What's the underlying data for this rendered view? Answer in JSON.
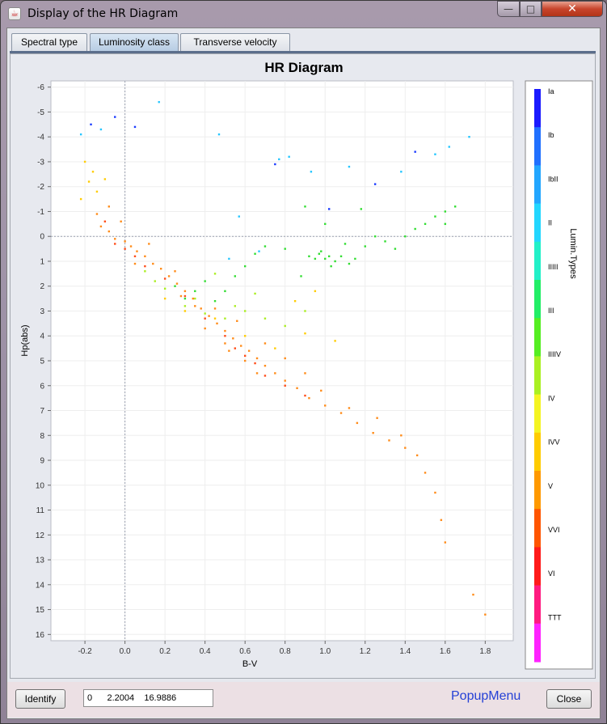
{
  "window": {
    "title": "Display of the HR Diagram",
    "buttons": {
      "minimize": "—",
      "maximize": "□",
      "close": "✕"
    }
  },
  "tabs": [
    {
      "label": "Spectral type",
      "active": false
    },
    {
      "label": "Luminosity class",
      "active": true
    },
    {
      "label": "Transverse velocity",
      "active": false
    }
  ],
  "bottom_bar": {
    "identify_label": "Identify",
    "coordinates": "0      2.2004    16.9886",
    "popup_label": "PopupMenu",
    "close_label": "Close"
  },
  "chart_data": {
    "type": "scatter",
    "title": "HR Diagram",
    "xlabel": "B-V",
    "ylabel": "Hp(abs)",
    "xlim": [
      -0.37,
      1.94
    ],
    "ylim": [
      -6.25,
      16.25
    ],
    "y_inverted": true,
    "x_ticks": [
      -0.2,
      0.0,
      0.2,
      0.4,
      0.6,
      0.8,
      1.0,
      1.2,
      1.4,
      1.6,
      1.8
    ],
    "x_tick_labels": [
      "-0.2",
      "0.0",
      "0.2",
      "0.4",
      "0.6",
      "0.8",
      "1.0",
      "1.2",
      "1.4",
      "1.6",
      "1.8"
    ],
    "y_ticks": [
      -6,
      -5,
      -4,
      -3,
      -2,
      -1,
      0,
      1,
      2,
      3,
      4,
      5,
      6,
      7,
      8,
      9,
      10,
      11,
      12,
      13,
      14,
      15,
      16
    ],
    "y_tick_labels": [
      "-6",
      "-5",
      "-4",
      "-3",
      "-2",
      "-1",
      "0",
      "1",
      "2",
      "3",
      "4",
      "5",
      "6",
      "7",
      "8",
      "9",
      "10",
      "11",
      "12",
      "13",
      "14",
      "15",
      "16"
    ],
    "reference_lines": {
      "x": 0,
      "y": 0
    },
    "grid": true,
    "colorbar": {
      "label": "Lumin.Types",
      "position": "right",
      "labels": [
        "Ia",
        "Ib",
        "IbII",
        "II",
        "IIIII",
        "III",
        "IIIIV",
        "IV",
        "IVV",
        "V",
        "VVI",
        "VI",
        "TTT"
      ],
      "colors": [
        "#1a1aff",
        "#2070ff",
        "#22a6ff",
        "#22d6ff",
        "#22f0c8",
        "#22ee66",
        "#55ee22",
        "#aaf022",
        "#f4f422",
        "#ffcc00",
        "#ff9900",
        "#ff5500",
        "#ff1a1a",
        "#ff1a80",
        "#ff22ff"
      ]
    },
    "series": [
      {
        "name": "Ia",
        "color": "#1a3aff",
        "points": [
          [
            -0.17,
            -4.5
          ],
          [
            -0.05,
            -4.8
          ],
          [
            0.05,
            -4.4
          ],
          [
            0.75,
            -2.9
          ],
          [
            1.02,
            -1.1
          ],
          [
            1.25,
            -2.1
          ],
          [
            1.45,
            -3.4
          ]
        ]
      },
      {
        "name": "II",
        "color": "#26c6ff",
        "points": [
          [
            -0.22,
            -4.1
          ],
          [
            -0.12,
            -4.3
          ],
          [
            0.17,
            -5.4
          ],
          [
            0.47,
            -4.1
          ],
          [
            0.57,
            -0.8
          ],
          [
            0.77,
            -3.1
          ],
          [
            0.82,
            -3.2
          ],
          [
            0.93,
            -2.6
          ],
          [
            1.12,
            -2.8
          ],
          [
            1.38,
            -2.6
          ],
          [
            1.55,
            -3.3
          ],
          [
            1.62,
            -3.6
          ],
          [
            1.72,
            -4.0
          ],
          [
            0.52,
            0.9
          ],
          [
            0.67,
            0.6
          ]
        ]
      },
      {
        "name": "III",
        "color": "#33dd33",
        "points": [
          [
            0.92,
            0.8
          ],
          [
            0.95,
            0.9
          ],
          [
            0.97,
            0.7
          ],
          [
            1.0,
            0.9
          ],
          [
            1.02,
            0.8
          ],
          [
            1.05,
            1.0
          ],
          [
            1.08,
            0.8
          ],
          [
            1.12,
            1.1
          ],
          [
            1.15,
            0.9
          ],
          [
            0.98,
            0.6
          ],
          [
            1.03,
            1.2
          ],
          [
            1.2,
            0.4
          ],
          [
            1.3,
            0.2
          ],
          [
            1.4,
            0.0
          ],
          [
            1.5,
            -0.5
          ],
          [
            1.55,
            -0.8
          ],
          [
            1.6,
            -1.0
          ],
          [
            1.65,
            -1.2
          ],
          [
            1.35,
            0.5
          ],
          [
            1.45,
            -0.3
          ],
          [
            1.1,
            0.3
          ],
          [
            1.25,
            0.0
          ],
          [
            1.6,
            -0.5
          ],
          [
            1.0,
            -0.5
          ],
          [
            0.9,
            -1.2
          ],
          [
            1.18,
            -1.1
          ],
          [
            0.4,
            1.8
          ],
          [
            0.35,
            2.2
          ],
          [
            0.3,
            2.5
          ],
          [
            0.45,
            2.6
          ],
          [
            0.5,
            2.2
          ],
          [
            0.55,
            1.6
          ],
          [
            0.25,
            2.0
          ],
          [
            0.6,
            1.2
          ],
          [
            0.65,
            0.7
          ],
          [
            0.7,
            0.4
          ],
          [
            0.8,
            0.5
          ],
          [
            0.88,
            1.6
          ]
        ]
      },
      {
        "name": "IV",
        "color": "#aaee22",
        "points": [
          [
            0.2,
            2.1
          ],
          [
            0.3,
            2.8
          ],
          [
            0.4,
            3.1
          ],
          [
            0.5,
            3.3
          ],
          [
            0.6,
            3.0
          ],
          [
            0.7,
            3.3
          ],
          [
            0.8,
            3.6
          ],
          [
            0.9,
            3.0
          ],
          [
            0.45,
            1.5
          ],
          [
            0.35,
            2.5
          ],
          [
            0.15,
            1.8
          ],
          [
            0.1,
            1.4
          ],
          [
            0.55,
            2.8
          ],
          [
            0.65,
            2.3
          ]
        ]
      },
      {
        "name": "V",
        "color": "#ffcc00",
        "points": [
          [
            -0.2,
            -3.0
          ],
          [
            -0.18,
            -2.2
          ],
          [
            -0.16,
            -2.6
          ],
          [
            -0.14,
            -1.8
          ],
          [
            -0.1,
            -2.3
          ],
          [
            -0.22,
            -1.5
          ],
          [
            0.2,
            2.5
          ],
          [
            0.3,
            3.0
          ],
          [
            0.45,
            3.3
          ],
          [
            0.6,
            4.0
          ],
          [
            0.75,
            4.5
          ],
          [
            0.9,
            3.9
          ],
          [
            1.05,
            4.2
          ],
          [
            0.85,
            2.6
          ],
          [
            0.95,
            2.2
          ]
        ]
      },
      {
        "name": "VVI",
        "color": "#ff8c1a",
        "points": [
          [
            -0.14,
            -0.9
          ],
          [
            -0.12,
            -0.4
          ],
          [
            -0.08,
            -0.2
          ],
          [
            -0.05,
            0.1
          ],
          [
            0.0,
            0.2
          ],
          [
            0.03,
            0.4
          ],
          [
            0.06,
            0.6
          ],
          [
            0.1,
            0.8
          ],
          [
            0.14,
            1.1
          ],
          [
            0.18,
            1.3
          ],
          [
            0.22,
            1.6
          ],
          [
            0.26,
            1.9
          ],
          [
            0.3,
            2.2
          ],
          [
            0.34,
            2.5
          ],
          [
            0.38,
            2.9
          ],
          [
            0.42,
            3.2
          ],
          [
            0.46,
            3.5
          ],
          [
            0.5,
            3.8
          ],
          [
            0.54,
            4.1
          ],
          [
            0.58,
            4.4
          ],
          [
            0.62,
            4.6
          ],
          [
            0.66,
            4.9
          ],
          [
            0.7,
            5.2
          ],
          [
            0.75,
            5.5
          ],
          [
            0.8,
            5.8
          ],
          [
            0.86,
            6.1
          ],
          [
            0.92,
            6.5
          ],
          [
            1.0,
            6.8
          ],
          [
            1.08,
            7.1
          ],
          [
            1.16,
            7.5
          ],
          [
            1.24,
            7.9
          ],
          [
            1.32,
            8.2
          ],
          [
            1.4,
            8.5
          ],
          [
            1.46,
            8.8
          ],
          [
            1.5,
            9.5
          ],
          [
            1.55,
            10.3
          ],
          [
            1.58,
            11.4
          ],
          [
            1.6,
            12.3
          ],
          [
            1.74,
            14.4
          ],
          [
            1.8,
            15.2
          ],
          [
            0.4,
            3.7
          ],
          [
            0.5,
            4.3
          ],
          [
            0.56,
            3.4
          ],
          [
            0.45,
            2.9
          ],
          [
            0.35,
            2.8
          ],
          [
            0.25,
            1.4
          ],
          [
            0.6,
            5.0
          ],
          [
            0.7,
            4.3
          ],
          [
            0.8,
            4.9
          ],
          [
            0.9,
            5.5
          ],
          [
            0.05,
            1.1
          ],
          [
            0.12,
            0.3
          ],
          [
            -0.02,
            -0.6
          ],
          [
            -0.08,
            -1.2
          ],
          [
            0.28,
            2.4
          ],
          [
            0.52,
            4.6
          ],
          [
            0.66,
            5.5
          ],
          [
            0.98,
            6.2
          ],
          [
            1.12,
            6.9
          ],
          [
            1.26,
            7.3
          ],
          [
            1.38,
            8.0
          ]
        ]
      },
      {
        "name": "VI",
        "color": "#ff4d1a",
        "points": [
          [
            0.0,
            0.5
          ],
          [
            0.05,
            0.8
          ],
          [
            0.1,
            1.2
          ],
          [
            0.2,
            1.7
          ],
          [
            0.3,
            2.4
          ],
          [
            0.4,
            3.3
          ],
          [
            0.5,
            4.0
          ],
          [
            0.55,
            4.5
          ],
          [
            0.6,
            4.8
          ],
          [
            0.65,
            5.1
          ],
          [
            0.7,
            5.6
          ],
          [
            0.8,
            6.0
          ],
          [
            0.9,
            6.4
          ],
          [
            -0.05,
            0.3
          ],
          [
            -0.1,
            -0.6
          ]
        ]
      }
    ]
  }
}
